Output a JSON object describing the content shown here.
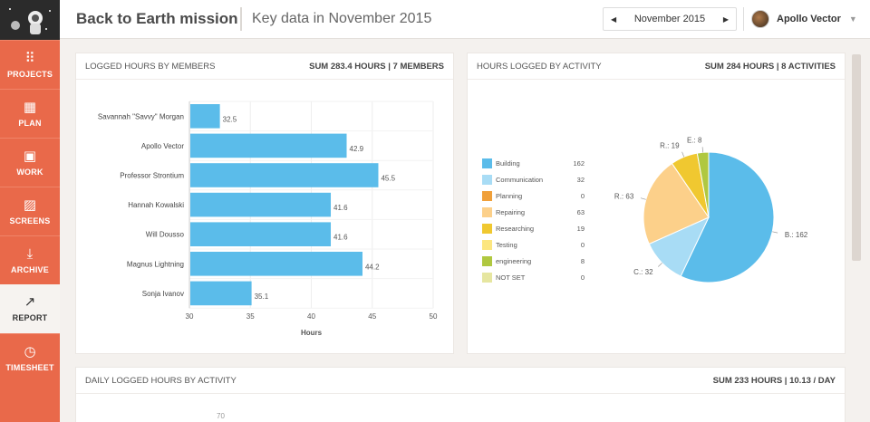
{
  "sidebar": {
    "items": [
      {
        "label": "PROJECTS",
        "icon": "grid-icon",
        "glyph": "⠿",
        "active": false
      },
      {
        "label": "PLAN",
        "icon": "calendar-icon",
        "glyph": "▦",
        "active": false
      },
      {
        "label": "WORK",
        "icon": "briefcase-icon",
        "glyph": "▣",
        "active": false
      },
      {
        "label": "SCREENS",
        "icon": "image-icon",
        "glyph": "▨",
        "active": false
      },
      {
        "label": "ARCHIVE",
        "icon": "download-icon",
        "glyph": "⤓",
        "active": false
      },
      {
        "label": "REPORT",
        "icon": "trend-icon",
        "glyph": "↗",
        "active": true
      },
      {
        "label": "TIMESHEET",
        "icon": "clock-icon",
        "glyph": "◷",
        "active": false
      }
    ]
  },
  "header": {
    "title": "Back to Earth mission",
    "subtitle": "Key data in November 2015",
    "month": "November 2015",
    "user": "Apollo Vector"
  },
  "members_panel": {
    "title": "LOGGED HOURS BY MEMBERS",
    "summary": "SUM 283.4 HOURS | 7 MEMBERS"
  },
  "activity_panel": {
    "title": "HOURS LOGGED BY ACTIVITY",
    "summary": "SUM 284 HOURS | 8 ACTIVITIES"
  },
  "daily_panel": {
    "title": "DAILY LOGGED HOURS BY ACTIVITY",
    "summary": "SUM 233 HOURS | 10.13 / DAY",
    "partial_tick": "70"
  },
  "chart_data": [
    {
      "type": "bar",
      "orientation": "horizontal",
      "categories": [
        "Savannah \"Savvy\" Morgan",
        "Apollo Vector",
        "Professor Strontium",
        "Hannah Kowalski",
        "Will Dousso",
        "Magnus Lightning",
        "Sonja Ivanov"
      ],
      "values": [
        32.5,
        42.9,
        45.5,
        41.6,
        41.6,
        44.2,
        35.1
      ],
      "xlabel": "Hours",
      "xlim": [
        30,
        50
      ],
      "xticks": [
        30,
        35,
        40,
        45,
        50
      ],
      "grid": true,
      "color": "#5bbcea"
    },
    {
      "type": "pie",
      "labels": [
        "Building",
        "Communication",
        "Planning",
        "Repairing",
        "Researching",
        "Testing",
        "engineering",
        "NOT SET"
      ],
      "values": [
        162,
        32,
        0,
        63,
        19,
        0,
        8,
        0
      ],
      "colors": [
        "#5bbcea",
        "#a8dcf5",
        "#f0a03a",
        "#fcd08a",
        "#f0c830",
        "#fce680",
        "#b0c840",
        "#e6e6a0"
      ],
      "slice_labels": [
        "B.: 162",
        "C.: 32",
        "",
        "R.: 63",
        "R.: 19",
        "",
        "E.: 8",
        ""
      ],
      "legend": "left"
    }
  ]
}
